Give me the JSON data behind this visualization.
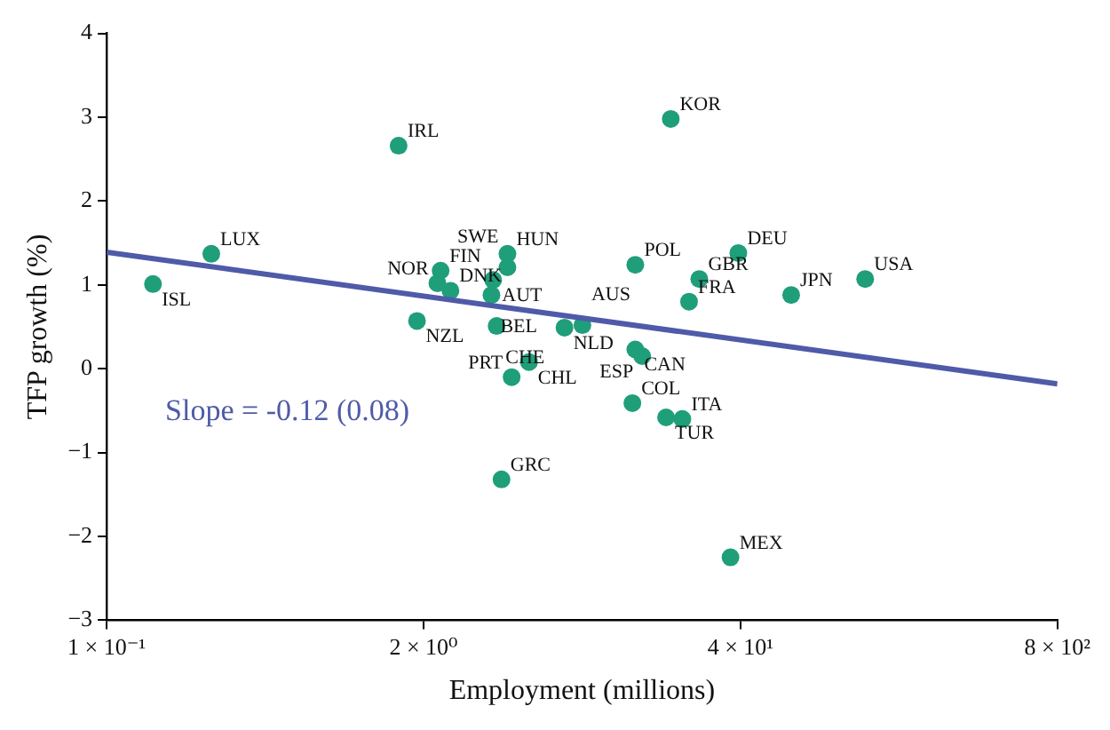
{
  "chart_data": {
    "type": "scatter",
    "xlabel": "Employment (millions)",
    "ylabel": "TFP growth (%)",
    "log": "x",
    "grid": false,
    "legend": false,
    "xlim": [
      0.1,
      800
    ],
    "xticks": [
      {
        "value": 0.1,
        "label": "1 × 10⁻¹"
      },
      {
        "value": 2,
        "label": "2 × 10⁰"
      },
      {
        "value": 40,
        "label": "4 × 10¹"
      },
      {
        "value": 800,
        "label": "8 × 10²"
      }
    ],
    "ylim": [
      -3,
      4
    ],
    "yticks": [
      {
        "value": -3,
        "label": "−3"
      },
      {
        "value": -2,
        "label": "−2"
      },
      {
        "value": -1,
        "label": "−1"
      },
      0,
      1,
      2,
      3,
      4
    ],
    "series": [
      {
        "type": "scatter",
        "marker": "circle",
        "color": "#1f9e7a",
        "x": [
          0.155,
          0.269,
          1.58,
          1.88,
          2.35,
          2.28,
          2.58,
          3.86,
          4.42,
          4.42,
          3.8,
          3.99,
          5.42,
          4.6,
          7.58,
          8.98,
          14.8,
          14.8,
          15.8,
          27.1,
          24.6,
          14.4,
          19.8,
          23.1,
          4.18,
          36.4,
          20.7,
          39.2,
          64.6,
          130
        ],
        "values": [
          1.01,
          1.37,
          2.66,
          0.57,
          1.17,
          1.02,
          0.93,
          1.06,
          1.37,
          1.21,
          0.88,
          0.51,
          0.08,
          -0.1,
          0.49,
          0.52,
          1.24,
          0.23,
          0.15,
          1.07,
          0.8,
          -0.41,
          -0.58,
          -0.6,
          -1.32,
          -2.25,
          2.98,
          1.38,
          0.88,
          1.07
        ]
      },
      {
        "type": "line",
        "color": "#4f5aa8",
        "x": [
          0.1,
          800
        ],
        "values": [
          1.39,
          -0.18
        ]
      }
    ],
    "annotations": [
      {
        "text": "ISL",
        "x": 0.155,
        "y": 1.01
      },
      {
        "text": "LUX",
        "x": 0.269,
        "y": 1.37
      },
      {
        "text": "IRL",
        "x": 1.58,
        "y": 2.66
      },
      {
        "text": "NZL",
        "x": 1.88,
        "y": 0.57
      },
      {
        "text": "FIN",
        "x": 2.35,
        "y": 1.17
      },
      {
        "text": "NOR",
        "x": 2.28,
        "y": 1.02
      },
      {
        "text": "DNK",
        "x": 2.58,
        "y": 0.93
      },
      {
        "text": "AUT",
        "x": 3.86,
        "y": 1.06
      },
      {
        "text": "HUN",
        "x": 4.42,
        "y": 1.37
      },
      {
        "text": "SWE",
        "x": 4.42,
        "y": 1.21
      },
      {
        "text": "BEL",
        "x": 3.8,
        "y": 0.88
      },
      {
        "text": "CHE",
        "x": 3.99,
        "y": 0.51
      },
      {
        "text": "CHL",
        "x": 5.42,
        "y": 0.08
      },
      {
        "text": "PRT",
        "x": 4.6,
        "y": -0.1
      },
      {
        "text": "NLD",
        "x": 7.58,
        "y": 0.49
      },
      {
        "text": "AUS",
        "x": 8.98,
        "y": 0.52
      },
      {
        "text": "POL",
        "x": 14.8,
        "y": 1.24
      },
      {
        "text": "CAN",
        "x": 14.8,
        "y": 0.23
      },
      {
        "text": "ESP",
        "x": 15.8,
        "y": 0.15
      },
      {
        "text": "GBR",
        "x": 27.1,
        "y": 1.07
      },
      {
        "text": "FRA",
        "x": 24.6,
        "y": 0.8
      },
      {
        "text": "COL",
        "x": 14.4,
        "y": -0.41
      },
      {
        "text": "TUR",
        "x": 19.8,
        "y": -0.58
      },
      {
        "text": "ITA",
        "x": 23.1,
        "y": -0.6
      },
      {
        "text": "GRC",
        "x": 4.18,
        "y": -1.32
      },
      {
        "text": "MEX",
        "x": 36.4,
        "y": -2.25
      },
      {
        "text": "KOR",
        "x": 20.7,
        "y": 2.98
      },
      {
        "text": "DEU",
        "x": 39.2,
        "y": 1.38
      },
      {
        "text": "JPN",
        "x": 64.6,
        "y": 0.88
      },
      {
        "text": "USA",
        "x": 130,
        "y": 1.07
      },
      "Slope = -0.12 (0.08)"
    ]
  }
}
